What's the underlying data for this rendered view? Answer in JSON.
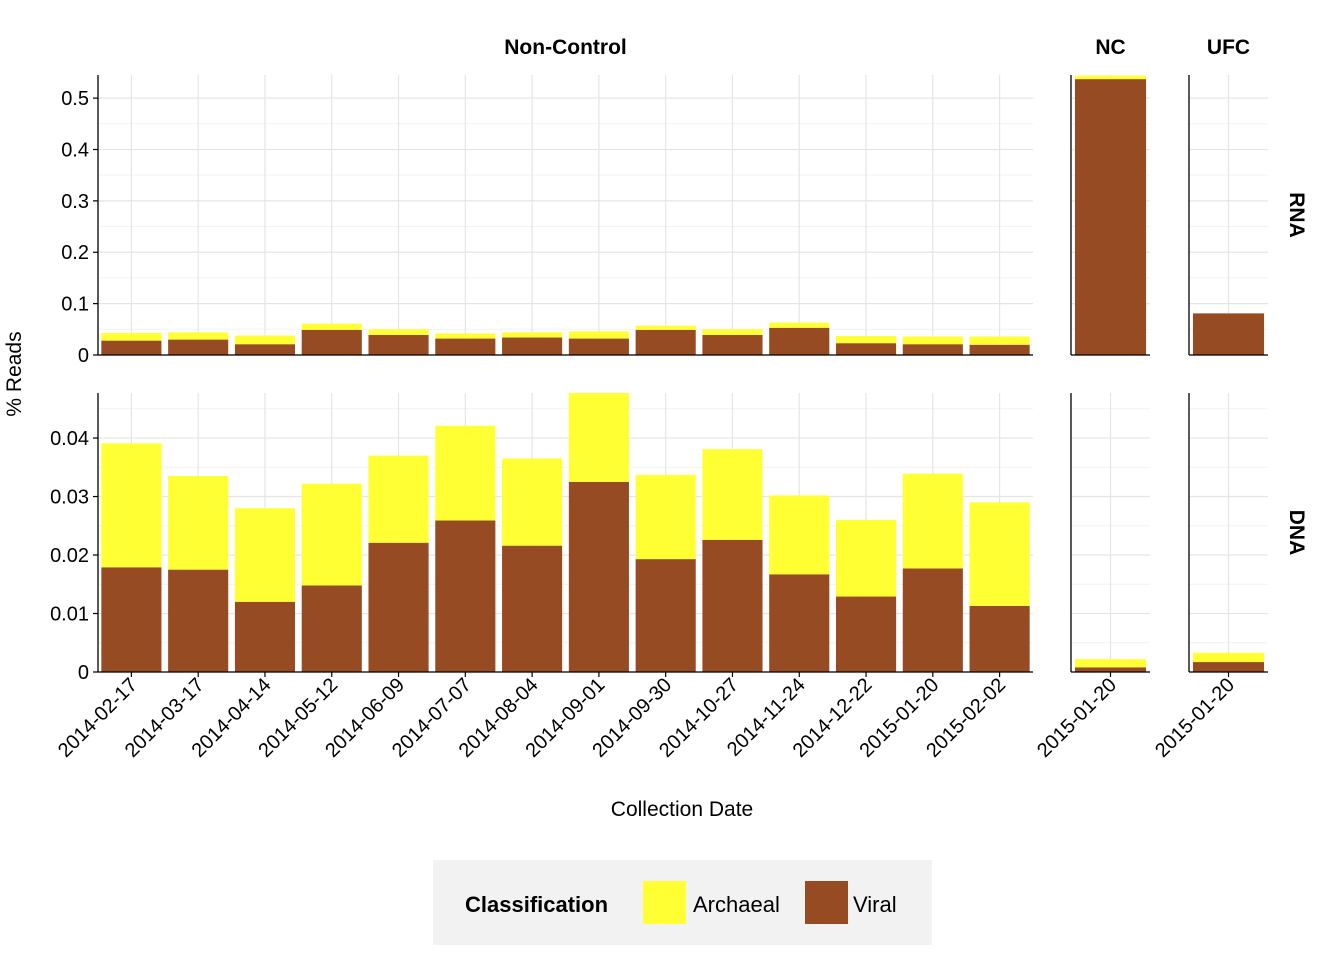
{
  "chart_data": {
    "type": "bar",
    "stacked": true,
    "xlabel": "Collection Date",
    "ylabel": "% Reads",
    "colors": {
      "Archaeal": "#FFFF33",
      "Viral": "#964B23"
    },
    "legend": {
      "title": "Classification",
      "placement": "bottom",
      "entries": [
        "Archaeal",
        "Viral"
      ]
    },
    "grid": true,
    "column_facets": [
      "Non-Control",
      "NC",
      "UFC"
    ],
    "row_facets": [
      "RNA",
      "DNA"
    ],
    "categories": {
      "Non-Control": [
        "2014-02-17",
        "2014-03-17",
        "2014-04-14",
        "2014-05-12",
        "2014-06-09",
        "2014-07-07",
        "2014-08-04",
        "2014-09-01",
        "2014-09-30",
        "2014-10-27",
        "2014-11-24",
        "2014-12-22",
        "2015-01-20",
        "2015-02-02"
      ],
      "NC": [
        "2015-01-20"
      ],
      "UFC": [
        "2015-01-20"
      ]
    },
    "panels": {
      "RNA": {
        "ylim": [
          0,
          0.545
        ],
        "yticks": [
          0,
          0.1,
          0.2,
          0.3,
          0.4,
          0.5
        ],
        "ytick_labels": [
          "0",
          "0.1",
          "0.2",
          "0.3",
          "0.4",
          "0.5"
        ],
        "series": {
          "Non-Control": {
            "Viral": [
              0.028,
              0.03,
              0.021,
              0.049,
              0.039,
              0.032,
              0.034,
              0.032,
              0.049,
              0.039,
              0.053,
              0.023,
              0.021,
              0.02
            ],
            "Archaeal": [
              0.015,
              0.014,
              0.017,
              0.012,
              0.011,
              0.01,
              0.01,
              0.014,
              0.008,
              0.011,
              0.01,
              0.014,
              0.015,
              0.016
            ]
          },
          "NC": {
            "Viral": [
              0.537
            ],
            "Archaeal": [
              0.007
            ]
          },
          "UFC": {
            "Viral": [
              0.081
            ],
            "Archaeal": [
              0.0
            ]
          }
        }
      },
      "DNA": {
        "ylim": [
          0,
          0.0477
        ],
        "yticks": [
          0,
          0.01,
          0.02,
          0.03,
          0.04
        ],
        "ytick_labels": [
          "0",
          "0.01",
          "0.02",
          "0.03",
          "0.04"
        ],
        "series": {
          "Non-Control": {
            "Viral": [
              0.0179,
              0.0175,
              0.012,
              0.0148,
              0.0221,
              0.0259,
              0.0216,
              0.0325,
              0.0193,
              0.0226,
              0.0167,
              0.0129,
              0.0177,
              0.0113
            ],
            "Archaeal": [
              0.0212,
              0.016,
              0.016,
              0.0174,
              0.0149,
              0.0162,
              0.0149,
              0.0152,
              0.0144,
              0.0155,
              0.0135,
              0.0131,
              0.0162,
              0.0177
            ]
          },
          "NC": {
            "Viral": [
              0.0008
            ],
            "Archaeal": [
              0.0014
            ]
          },
          "UFC": {
            "Viral": [
              0.0017
            ],
            "Archaeal": [
              0.0016
            ]
          }
        }
      }
    }
  }
}
